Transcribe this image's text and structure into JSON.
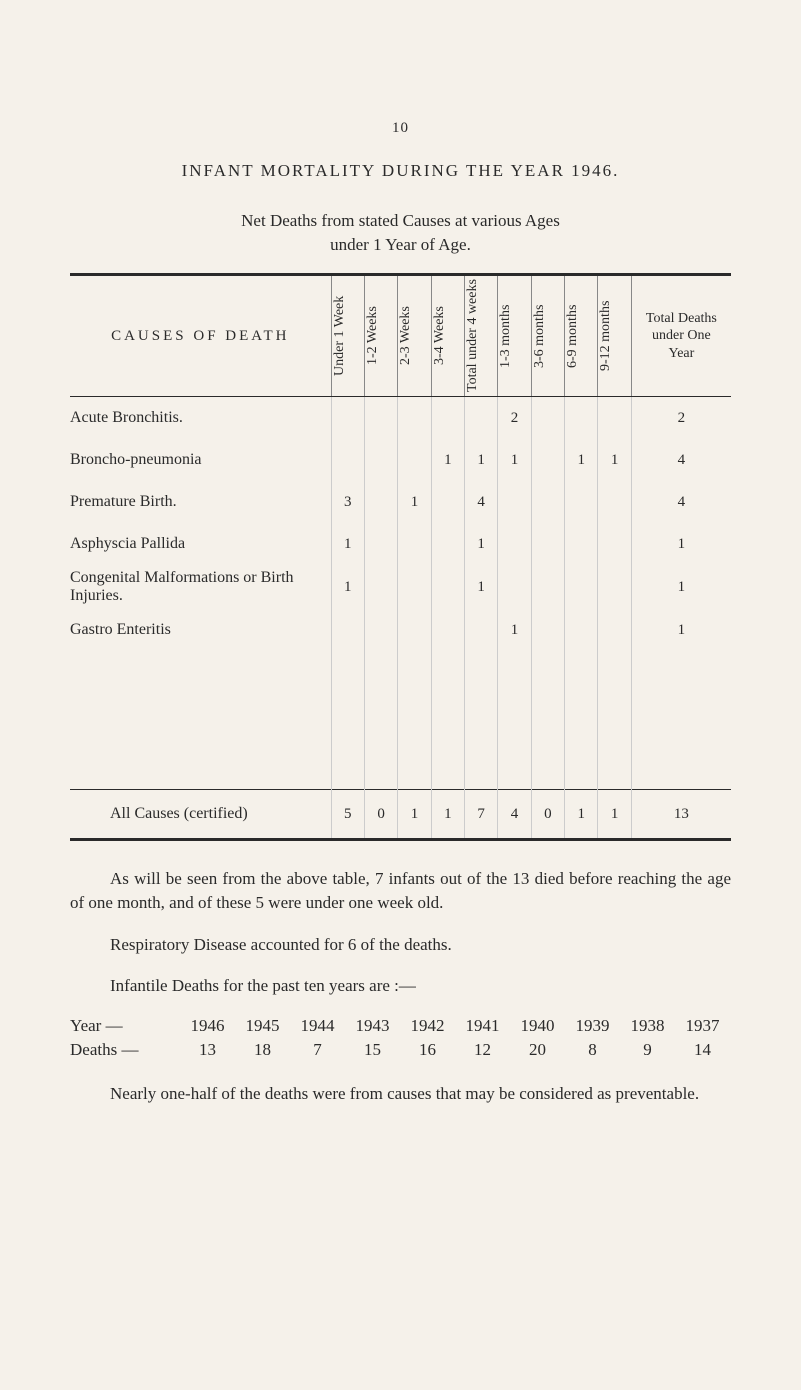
{
  "page_num": "10",
  "title": "INFANT  MORTALITY  DURING  THE  YEAR  1946.",
  "subtitle": "Net Deaths from stated Causes at various Ages",
  "subtitle2": "under 1 Year of Age.",
  "table": {
    "corner": "CAUSES  OF  DEATH",
    "cols": [
      "Under 1 Week",
      "1-2 Weeks",
      "2-3 Weeks",
      "3-4 Weeks",
      "Total under 4 weeks",
      "1-3 months",
      "3-6 months",
      "6-9 months",
      "9-12 months"
    ],
    "last_col": "Total Deaths under One Year",
    "rows": [
      {
        "label": "Acute Bronchitis.",
        "cells": [
          "",
          "",
          "",
          "",
          "",
          "2",
          "",
          "",
          "",
          "2"
        ]
      },
      {
        "label": "Broncho-pneumonia",
        "cells": [
          "",
          "",
          "",
          "1",
          "1",
          "1",
          "",
          "1",
          "1",
          "4"
        ]
      },
      {
        "label": "Premature Birth.",
        "cells": [
          "3",
          "",
          "1",
          "",
          "4",
          "",
          "",
          "",
          "",
          "4"
        ]
      },
      {
        "label": "Asphyscia Pallida",
        "cells": [
          "1",
          "",
          "",
          "",
          "1",
          "",
          "",
          "",
          "",
          "1"
        ]
      },
      {
        "label": "Congenital Malformations or Birth Injuries.",
        "cells": [
          "1",
          "",
          "",
          "",
          "1",
          "",
          "",
          "",
          "",
          "1"
        ]
      },
      {
        "label": "Gastro Enteritis",
        "cells": [
          "",
          "",
          "",
          "",
          "",
          "1",
          "",
          "",
          "",
          "1"
        ]
      }
    ],
    "total_label": "All Causes (certified)",
    "total_cells": [
      "5",
      "0",
      "1",
      "1",
      "7",
      "4",
      "0",
      "1",
      "1",
      "13"
    ]
  },
  "para1": "As will be seen from the above table, 7 infants out of the 13 died before reaching the age of one month, and of these 5 were under one week old.",
  "para2": "Respiratory Disease accounted for 6 of the deaths.",
  "para3": "Infantile Deaths for the past ten years are :—",
  "years": {
    "label": "Year  —",
    "vals": [
      "1946",
      "1945",
      "1944",
      "1943",
      "1942",
      "1941",
      "1940",
      "1939",
      "1938",
      "1937"
    ]
  },
  "deaths": {
    "label": "Deaths —",
    "vals": [
      "13",
      "18",
      "7",
      "15",
      "16",
      "12",
      "20",
      "8",
      "9",
      "14"
    ]
  },
  "para4": "Nearly one-half of the deaths were from causes that may be considered as preventable.",
  "style": {
    "bg": "#f5f1ea",
    "text": "#2a2a2a",
    "rule_color": "#2a2a2a",
    "cell_border": "#ccc",
    "font_family": "Times New Roman, Georgia, serif",
    "body_fontsize": 17,
    "table_fontsize": 15
  }
}
